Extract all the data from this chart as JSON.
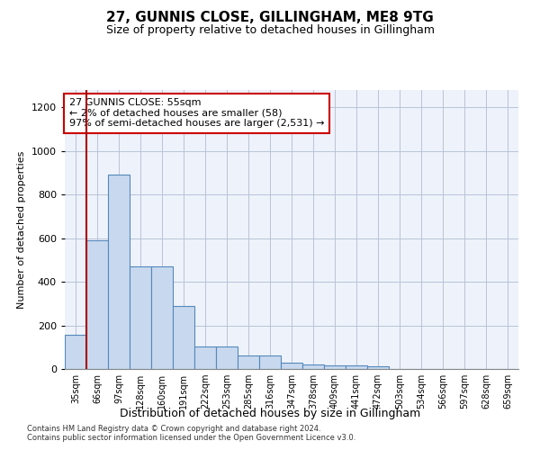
{
  "title": "27, GUNNIS CLOSE, GILLINGHAM, ME8 9TG",
  "subtitle": "Size of property relative to detached houses in Gillingham",
  "xlabel": "Distribution of detached houses by size in Gillingham",
  "ylabel": "Number of detached properties",
  "categories": [
    "35sqm",
    "66sqm",
    "97sqm",
    "128sqm",
    "160sqm",
    "191sqm",
    "222sqm",
    "253sqm",
    "285sqm",
    "316sqm",
    "347sqm",
    "378sqm",
    "409sqm",
    "441sqm",
    "472sqm",
    "503sqm",
    "534sqm",
    "566sqm",
    "597sqm",
    "628sqm",
    "659sqm"
  ],
  "values": [
    155,
    590,
    890,
    470,
    470,
    290,
    105,
    105,
    62,
    62,
    28,
    20,
    15,
    15,
    12,
    0,
    0,
    0,
    0,
    0,
    0
  ],
  "bar_color": "#c8d9ef",
  "bar_edge_color": "#5588bb",
  "annotation_box_text": "27 GUNNIS CLOSE: 55sqm\n← 2% of detached houses are smaller (58)\n97% of semi-detached houses are larger (2,531) →",
  "annotation_box_color": "#ffffff",
  "annotation_box_edge_color": "#cc0000",
  "vline_x": 0.5,
  "vline_color": "#aa0000",
  "ylim": [
    0,
    1280
  ],
  "yticks": [
    0,
    200,
    400,
    600,
    800,
    1000,
    1200
  ],
  "footer_line1": "Contains HM Land Registry data © Crown copyright and database right 2024.",
  "footer_line2": "Contains public sector information licensed under the Open Government Licence v3.0.",
  "bg_color": "#eef2fa",
  "grid_color": "#b8c4d8",
  "title_fontsize": 11,
  "subtitle_fontsize": 9,
  "annotation_fontsize": 8
}
